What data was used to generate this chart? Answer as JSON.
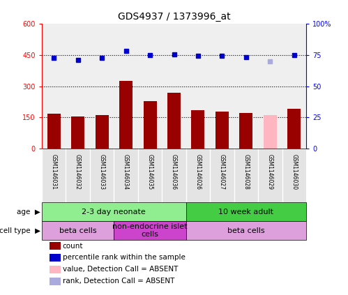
{
  "title": "GDS4937 / 1373996_at",
  "samples": [
    "GSM1146031",
    "GSM1146032",
    "GSM1146033",
    "GSM1146034",
    "GSM1146035",
    "GSM1146036",
    "GSM1146026",
    "GSM1146027",
    "GSM1146028",
    "GSM1146029",
    "GSM1146030"
  ],
  "counts": [
    168,
    155,
    162,
    325,
    230,
    270,
    185,
    178,
    172,
    160,
    192
  ],
  "ranks": [
    72.5,
    71.0,
    72.5,
    78.0,
    75.0,
    75.5,
    74.5,
    74.0,
    73.0,
    70.0,
    75.0
  ],
  "absent_count_idx": [
    9
  ],
  "absent_rank_idx": [
    9
  ],
  "bar_color_normal": "#990000",
  "bar_color_absent": "#FFB6C1",
  "dot_color_normal": "#0000CC",
  "dot_color_absent": "#AAAADD",
  "ylim_left": [
    0,
    600
  ],
  "ylim_right": [
    0,
    100
  ],
  "ytick_labels_left": [
    "0",
    "150",
    "300",
    "450",
    "600"
  ],
  "ytick_labels_right": [
    "0",
    "25",
    "50",
    "75",
    "100%"
  ],
  "hlines": [
    150,
    300,
    450
  ],
  "age_groups": [
    {
      "label": "2-3 day neonate",
      "start": 0,
      "end": 5,
      "color": "#90EE90"
    },
    {
      "label": "10 week adult",
      "start": 6,
      "end": 10,
      "color": "#44CC44"
    }
  ],
  "cell_type_groups": [
    {
      "label": "beta cells",
      "start": 0,
      "end": 2,
      "color": "#DDA0DD"
    },
    {
      "label": "non-endocrine islet\ncells",
      "start": 3,
      "end": 5,
      "color": "#CC44CC"
    },
    {
      "label": "beta cells",
      "start": 6,
      "end": 10,
      "color": "#DDA0DD"
    }
  ],
  "legend_items": [
    {
      "label": "count",
      "color": "#990000"
    },
    {
      "label": "percentile rank within the sample",
      "color": "#0000CC"
    },
    {
      "label": "value, Detection Call = ABSENT",
      "color": "#FFB6C1"
    },
    {
      "label": "rank, Detection Call = ABSENT",
      "color": "#AAAADD"
    }
  ],
  "col_bg_color": "#D3D3D3",
  "plot_bg_color": "#FFFFFF",
  "title_fontsize": 10,
  "tick_fontsize": 7,
  "label_fontsize": 8
}
